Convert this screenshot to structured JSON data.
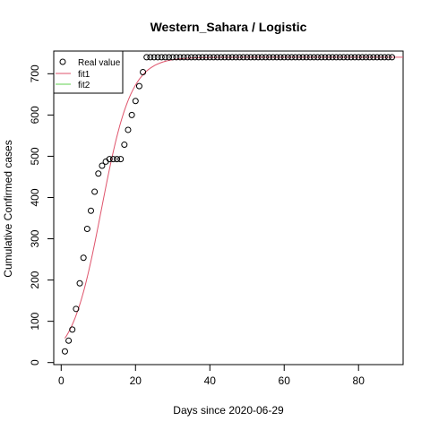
{
  "chart_data": {
    "type": "scatter",
    "title": "Western_Sahara / Logistic",
    "xlabel": "Days since 2020-06-29",
    "ylabel": "Cumulative Confirmed cases",
    "xlim": [
      -2,
      92
    ],
    "ylim": [
      -5,
      755
    ],
    "x_ticks": [
      0,
      20,
      40,
      60,
      80
    ],
    "y_ticks": [
      0,
      100,
      200,
      300,
      400,
      500,
      600,
      700
    ],
    "legend": {
      "position": "top-left",
      "entries": [
        {
          "label": "Real value",
          "marker": "circle",
          "color": "#000000"
        },
        {
          "label": "fit1",
          "marker": "line",
          "color": "#DF536B"
        },
        {
          "label": "fit2",
          "marker": "line",
          "color": "#61D04F"
        }
      ]
    },
    "series": [
      {
        "name": "Real value",
        "kind": "points",
        "x": [
          1,
          2,
          3,
          4,
          5,
          6,
          7,
          8,
          9,
          10,
          11,
          12,
          13,
          14,
          15,
          16,
          17,
          18,
          19,
          20,
          21,
          22,
          23,
          24,
          25,
          26,
          27,
          28,
          29,
          30,
          31,
          32,
          33,
          34,
          35,
          36,
          37,
          38,
          39,
          40,
          41,
          42,
          43,
          44,
          45,
          46,
          47,
          48,
          49,
          50,
          51,
          52,
          53,
          54,
          55,
          56,
          57,
          58,
          59,
          60,
          61,
          62,
          63,
          64,
          65,
          66,
          67,
          68,
          69,
          70,
          71,
          72,
          73,
          74,
          75,
          76,
          77,
          78,
          79,
          80,
          81,
          82,
          83,
          84,
          85,
          86,
          87,
          88,
          89
        ],
        "y": [
          27,
          53,
          80,
          130,
          192,
          254,
          324,
          368,
          414,
          458,
          477,
          487,
          493,
          493,
          493,
          493,
          528,
          564,
          600,
          634,
          670,
          704,
          740,
          740,
          740,
          740,
          740,
          740,
          740,
          740,
          740,
          740,
          740,
          740,
          740,
          740,
          740,
          740,
          740,
          740,
          740,
          740,
          740,
          740,
          740,
          740,
          740,
          740,
          740,
          740,
          740,
          740,
          740,
          740,
          740,
          740,
          740,
          740,
          740,
          740,
          740,
          740,
          740,
          740,
          740,
          740,
          740,
          740,
          740,
          740,
          740,
          740,
          740,
          740,
          740,
          740,
          740,
          740,
          740,
          740,
          740,
          740,
          740,
          740,
          740,
          740,
          740,
          740,
          740
        ]
      },
      {
        "name": "fit1",
        "kind": "logistic",
        "K": 740,
        "r": 0.25,
        "t0": 10.8,
        "x_range": [
          1,
          92
        ]
      },
      {
        "name": "fit2",
        "kind": "hidden"
      }
    ]
  }
}
